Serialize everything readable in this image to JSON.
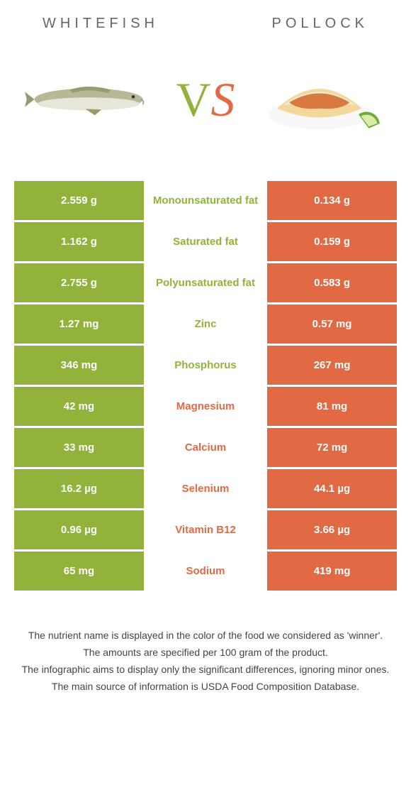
{
  "header": {
    "left": "WHITEFISH",
    "right": "POLLOCK"
  },
  "vs": {
    "v": "V",
    "s": "S"
  },
  "colors": {
    "left": "#92b23c",
    "right": "#e16a44",
    "row_gap_bg": "#ffffff"
  },
  "rows": [
    {
      "nutrient": "Monounsaturated fat",
      "left": "2.559 g",
      "right": "0.134 g",
      "winner": "left"
    },
    {
      "nutrient": "Saturated fat",
      "left": "1.162 g",
      "right": "0.159 g",
      "winner": "left"
    },
    {
      "nutrient": "Polyunsaturated fat",
      "left": "2.755 g",
      "right": "0.583 g",
      "winner": "left"
    },
    {
      "nutrient": "Zinc",
      "left": "1.27 mg",
      "right": "0.57 mg",
      "winner": "left"
    },
    {
      "nutrient": "Phosphorus",
      "left": "346 mg",
      "right": "267 mg",
      "winner": "left"
    },
    {
      "nutrient": "Magnesium",
      "left": "42 mg",
      "right": "81 mg",
      "winner": "right"
    },
    {
      "nutrient": "Calcium",
      "left": "33 mg",
      "right": "72 mg",
      "winner": "right"
    },
    {
      "nutrient": "Selenium",
      "left": "16.2 µg",
      "right": "44.1 µg",
      "winner": "right"
    },
    {
      "nutrient": "Vitamin B12",
      "left": "0.96 µg",
      "right": "3.66 µg",
      "winner": "right"
    },
    {
      "nutrient": "Sodium",
      "left": "65 mg",
      "right": "419 mg",
      "winner": "right"
    }
  ],
  "footer": {
    "line1": "The nutrient name is displayed in the color of the food we considered as 'winner'.",
    "line2": "The amounts are specified per 100 gram of the product.",
    "line3": "The infographic aims to display only the significant differences, ignoring minor ones.",
    "line4": "The main source of information is USDA Food Composition Database."
  },
  "fish_svg_colors": {
    "body": "#b8b896",
    "belly": "#e8e6d8",
    "fin": "#9a9a70"
  },
  "taco_svg_colors": {
    "shell": "#f4d79a",
    "fill": "#d87a3f",
    "lettuce": "#e8efd8",
    "lime_rind": "#6faa3c",
    "lime_flesh": "#d8eea8"
  }
}
